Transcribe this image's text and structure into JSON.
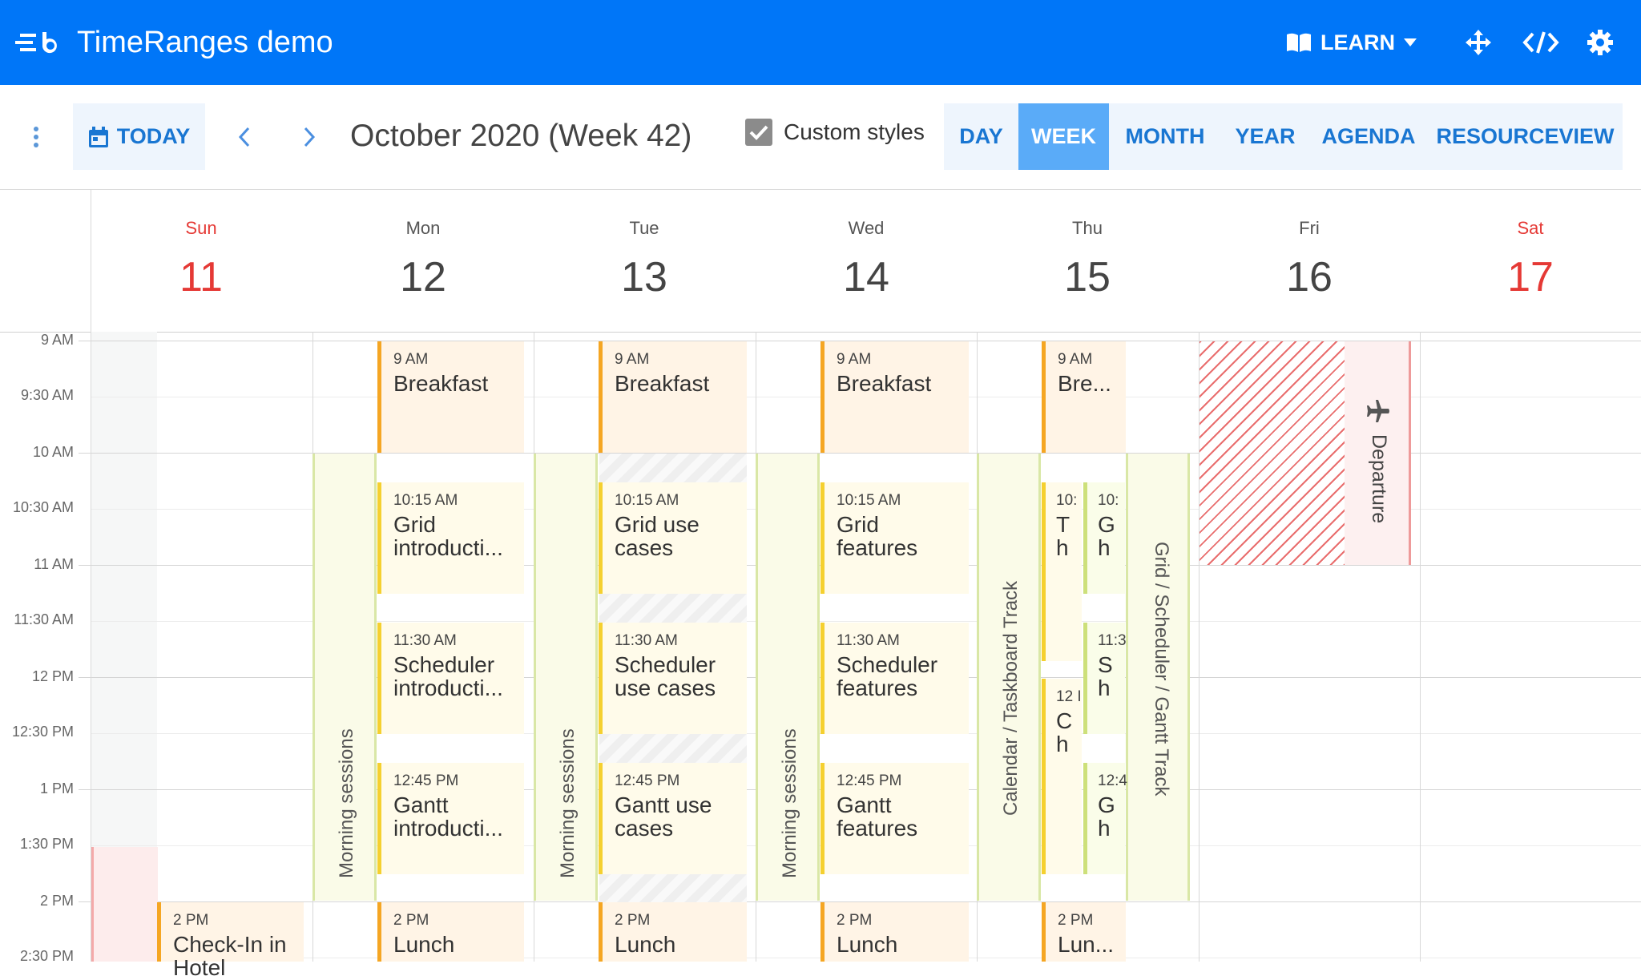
{
  "app": {
    "title": "TimeRanges demo",
    "learn_label": "LEARN",
    "icons": [
      "bryntum-logo-icon",
      "book-icon",
      "caret-down-icon",
      "move-arrows-icon",
      "code-icon",
      "gear-icon"
    ]
  },
  "toolbar": {
    "today_label": "TODAY",
    "period_title": "October 2020 (Week 42)",
    "custom_styles_label": "Custom styles",
    "custom_styles_checked": true,
    "views": [
      "DAY",
      "WEEK",
      "MONTH",
      "YEAR",
      "AGENDA",
      "RESOURCEVIEW"
    ],
    "active_view": "WEEK"
  },
  "days": [
    {
      "name": "Sun",
      "date": "11",
      "weekend": true
    },
    {
      "name": "Mon",
      "date": "12",
      "weekend": false
    },
    {
      "name": "Tue",
      "date": "13",
      "weekend": false
    },
    {
      "name": "Wed",
      "date": "14",
      "weekend": false
    },
    {
      "name": "Thu",
      "date": "15",
      "weekend": false
    },
    {
      "name": "Fri",
      "date": "16",
      "weekend": false
    },
    {
      "name": "Sat",
      "date": "17",
      "weekend": true
    }
  ],
  "time_labels": [
    "9 AM",
    "9:30 AM",
    "10 AM",
    "10:30 AM",
    "11 AM",
    "11:30 AM",
    "12 PM",
    "12:30 PM",
    "1 PM",
    "1:30 PM",
    "2 PM",
    "2:30 PM"
  ],
  "time_ranges": {
    "morning_sessions": "Morning sessions",
    "calendar_track": "Calendar / Taskboard Track",
    "grid_track": "Grid / Scheduler / Gantt Track",
    "departure": "Departure"
  },
  "events": {
    "mon": [
      {
        "time": "9 AM",
        "name": "Breakfast"
      },
      {
        "time": "10:15 AM",
        "name": "Grid introducti..."
      },
      {
        "time": "11:30 AM",
        "name": "Scheduler introducti..."
      },
      {
        "time": "12:45 PM",
        "name": "Gantt introducti..."
      },
      {
        "time": "2 PM",
        "name": "Lunch"
      }
    ],
    "tue": [
      {
        "time": "9 AM",
        "name": "Breakfast"
      },
      {
        "time": "10:15 AM",
        "name": "Grid use cases"
      },
      {
        "time": "11:30 AM",
        "name": "Scheduler use cases"
      },
      {
        "time": "12:45 PM",
        "name": "Gantt use cases"
      },
      {
        "time": "2 PM",
        "name": "Lunch"
      }
    ],
    "wed": [
      {
        "time": "9 AM",
        "name": "Breakfast"
      },
      {
        "time": "10:15 AM",
        "name": "Grid features"
      },
      {
        "time": "11:30 AM",
        "name": "Scheduler features"
      },
      {
        "time": "12:45 PM",
        "name": "Gantt features"
      },
      {
        "time": "2 PM",
        "name": "Lunch"
      }
    ],
    "thu": [
      {
        "time": "9 AM",
        "name": "Bre..."
      },
      {
        "time": "10:",
        "name": "T h"
      },
      {
        "time": "10:",
        "name": "G h"
      },
      {
        "time": "11:3",
        "name": "S h"
      },
      {
        "time": "12 I",
        "name": "C h"
      },
      {
        "time": "12:4",
        "name": "G h"
      },
      {
        "time": "2 PM",
        "name": "Lun..."
      }
    ],
    "sun": [
      {
        "time": "2 PM",
        "name": "Check-In in Hotel"
      }
    ]
  }
}
